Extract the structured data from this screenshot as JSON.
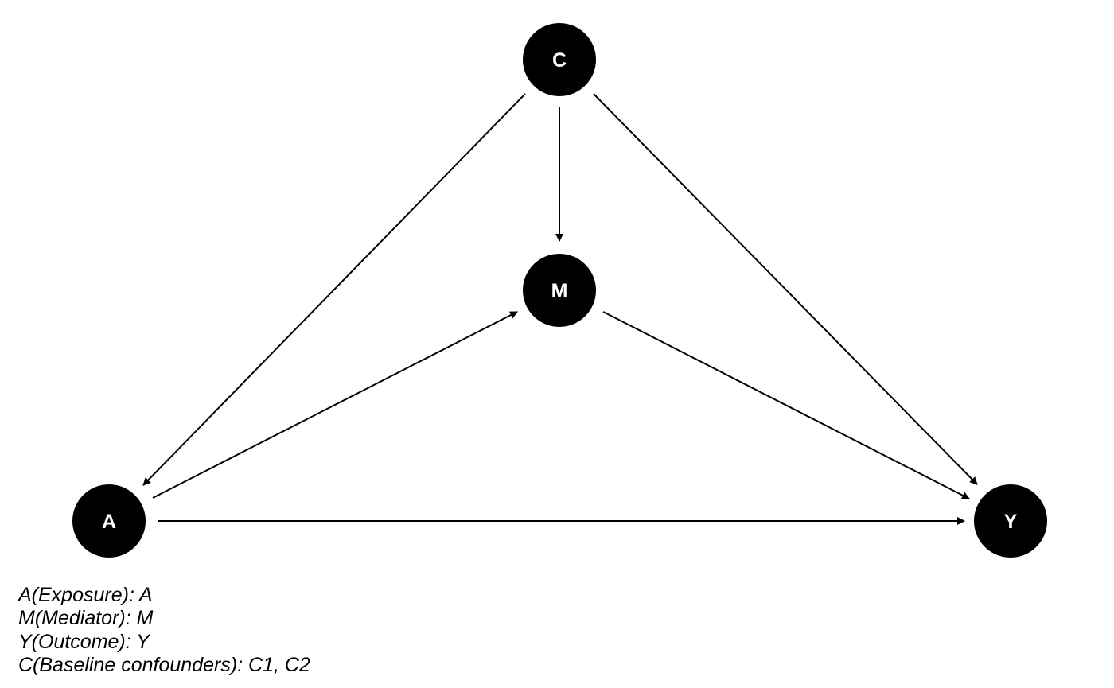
{
  "diagram": {
    "nodes": [
      {
        "id": "C",
        "label": "C"
      },
      {
        "id": "M",
        "label": "M"
      },
      {
        "id": "A",
        "label": "A"
      },
      {
        "id": "Y",
        "label": "Y"
      }
    ],
    "edges": [
      {
        "from": "C",
        "to": "A"
      },
      {
        "from": "C",
        "to": "M"
      },
      {
        "from": "C",
        "to": "Y"
      },
      {
        "from": "A",
        "to": "M"
      },
      {
        "from": "M",
        "to": "Y"
      },
      {
        "from": "A",
        "to": "Y"
      }
    ],
    "colors": {
      "node_fill": "#000000",
      "node_text": "#ffffff",
      "edge": "#000000"
    }
  },
  "legend": {
    "lines": [
      "A(Exposure): A",
      "M(Mediator): M",
      "Y(Outcome): Y",
      "C(Baseline confounders): C1, C2"
    ]
  }
}
